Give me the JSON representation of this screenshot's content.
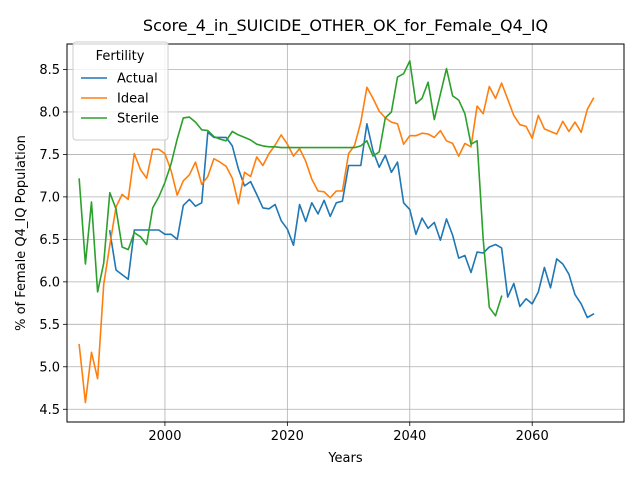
{
  "chart_data": {
    "type": "line",
    "title": "Score_4_in_SUICIDE_OTHER_OK_for_Female_Q4_IQ",
    "xlabel": "Years",
    "ylabel": "% of Female Q4_IQ Population",
    "xlim": [
      1984,
      2075
    ],
    "ylim": [
      4.35,
      8.8
    ],
    "xticks": [
      2000,
      2020,
      2040,
      2060
    ],
    "yticks": [
      4.5,
      5.0,
      5.5,
      6.0,
      6.5,
      7.0,
      7.5,
      8.0,
      8.5
    ],
    "ytick_labels": [
      "4.5",
      "5.0",
      "5.5",
      "6.0",
      "6.5",
      "7.0",
      "7.5",
      "8.0",
      "8.5"
    ],
    "grid": true,
    "legend": {
      "title": "Fertility",
      "placement": "top-left"
    },
    "series": [
      {
        "name": "Actual",
        "color": "#1f77b4",
        "x": [
          1991,
          1992,
          1994,
          1995,
          1996,
          1997,
          1998,
          1999,
          2000,
          2001,
          2002,
          2003,
          2004,
          2005,
          2006,
          2007,
          2008,
          2009,
          2010,
          2011,
          2012,
          2013,
          2014,
          2015,
          2016,
          2017,
          2018,
          2019,
          2020,
          2021,
          2022,
          2023,
          2024,
          2025,
          2026,
          2027,
          2028,
          2029,
          2030,
          2031,
          2032,
          2033,
          2034,
          2035,
          2036,
          2037,
          2038,
          2039,
          2040,
          2041,
          2042,
          2043,
          2044,
          2045,
          2046,
          2047,
          2048,
          2049,
          2050,
          2051,
          2052,
          2053,
          2054,
          2055,
          2056,
          2057,
          2058,
          2059,
          2060,
          2061,
          2062,
          2063,
          2064,
          2065,
          2066,
          2067,
          2068,
          2069,
          2070
        ],
        "y": [
          6.6,
          6.14,
          6.03,
          6.61,
          6.61,
          6.61,
          6.61,
          6.61,
          6.56,
          6.56,
          6.5,
          6.9,
          6.97,
          6.89,
          6.93,
          7.76,
          7.7,
          7.7,
          7.7,
          7.6,
          7.33,
          7.13,
          7.18,
          7.03,
          6.87,
          6.86,
          6.91,
          6.72,
          6.62,
          6.43,
          6.91,
          6.71,
          6.93,
          6.8,
          6.96,
          6.77,
          6.93,
          6.95,
          7.37,
          7.37,
          7.37,
          7.86,
          7.54,
          7.35,
          7.49,
          7.29,
          7.41,
          6.93,
          6.85,
          6.56,
          6.75,
          6.63,
          6.7,
          6.49,
          6.74,
          6.55,
          6.28,
          6.31,
          6.11,
          6.35,
          6.34,
          6.41,
          6.44,
          6.4,
          5.82,
          5.98,
          5.71,
          5.8,
          5.74,
          5.88,
          6.17,
          5.93,
          6.27,
          6.21,
          6.09,
          5.85,
          5.74,
          5.58,
          5.62
        ]
      },
      {
        "name": "Ideal",
        "color": "#ff7f0e",
        "x": [
          1986,
          1987,
          1988,
          1989,
          1990,
          1991,
          1992,
          1993,
          1994,
          1995,
          1996,
          1997,
          1998,
          1999,
          2000,
          2001,
          2002,
          2003,
          2004,
          2005,
          2006,
          2007,
          2008,
          2009,
          2010,
          2011,
          2012,
          2013,
          2014,
          2015,
          2016,
          2017,
          2018,
          2019,
          2020,
          2021,
          2022,
          2023,
          2024,
          2025,
          2026,
          2027,
          2028,
          2029,
          2030,
          2031,
          2032,
          2033,
          2034,
          2035,
          2036,
          2037,
          2038,
          2039,
          2040,
          2041,
          2042,
          2043,
          2044,
          2045,
          2046,
          2047,
          2048,
          2049,
          2050,
          2051,
          2052,
          2053,
          2054,
          2055,
          2056,
          2057,
          2058,
          2059,
          2060,
          2061,
          2062,
          2063,
          2064,
          2065,
          2066,
          2067,
          2068,
          2069,
          2070
        ],
        "y": [
          5.26,
          4.58,
          5.17,
          4.86,
          5.97,
          6.43,
          6.88,
          7.03,
          6.97,
          7.51,
          7.32,
          7.22,
          7.56,
          7.56,
          7.51,
          7.31,
          7.02,
          7.19,
          7.26,
          7.41,
          7.15,
          7.24,
          7.45,
          7.41,
          7.36,
          7.22,
          6.92,
          7.29,
          7.24,
          7.47,
          7.37,
          7.51,
          7.61,
          7.73,
          7.62,
          7.48,
          7.57,
          7.42,
          7.21,
          7.07,
          7.06,
          6.99,
          7.07,
          7.07,
          7.51,
          7.61,
          7.88,
          8.29,
          8.16,
          8.01,
          7.93,
          7.88,
          7.86,
          7.62,
          7.72,
          7.72,
          7.75,
          7.74,
          7.7,
          7.78,
          7.66,
          7.63,
          7.48,
          7.63,
          7.59,
          8.07,
          7.98,
          8.3,
          8.16,
          8.34,
          8.15,
          7.96,
          7.85,
          7.83,
          7.69,
          7.96,
          7.8,
          7.77,
          7.74,
          7.89,
          7.77,
          7.88,
          7.76,
          8.03,
          8.16
        ]
      },
      {
        "name": "Sterile",
        "color": "#2ca02c",
        "x": [
          1986,
          1987,
          1988,
          1989,
          1990,
          1991,
          1992,
          1993,
          1994,
          1995,
          1996,
          1997,
          1998,
          1999,
          2000,
          2001,
          2002,
          2003,
          2004,
          2005,
          2006,
          2007,
          2008,
          2009,
          2010,
          2011,
          2012,
          2013,
          2014,
          2015,
          2016,
          2017,
          2018,
          2019,
          2020,
          2021,
          2022,
          2023,
          2024,
          2025,
          2026,
          2027,
          2028,
          2029,
          2030,
          2031,
          2032,
          2033,
          2034,
          2035,
          2036,
          2037,
          2038,
          2039,
          2040,
          2041,
          2042,
          2043,
          2044,
          2045,
          2046,
          2047,
          2048,
          2049,
          2050,
          2051,
          2052,
          2053,
          2054,
          2055
        ],
        "y": [
          7.21,
          6.21,
          6.94,
          5.88,
          6.22,
          7.05,
          6.86,
          6.41,
          6.38,
          6.58,
          6.53,
          6.44,
          6.87,
          7.0,
          7.17,
          7.39,
          7.68,
          7.93,
          7.94,
          7.88,
          7.79,
          7.78,
          7.71,
          7.68,
          7.66,
          7.77,
          7.73,
          7.7,
          7.67,
          7.62,
          7.6,
          7.59,
          7.59,
          7.58,
          7.58,
          7.58,
          7.58,
          7.58,
          7.58,
          7.58,
          7.58,
          7.58,
          7.58,
          7.58,
          7.58,
          7.58,
          7.6,
          7.66,
          7.48,
          7.53,
          7.93,
          8.0,
          8.41,
          8.45,
          8.6,
          8.1,
          8.16,
          8.35,
          7.91,
          8.21,
          8.51,
          8.19,
          8.14,
          7.98,
          7.62,
          7.66,
          6.5,
          5.7,
          5.6,
          5.83
        ]
      }
    ]
  }
}
